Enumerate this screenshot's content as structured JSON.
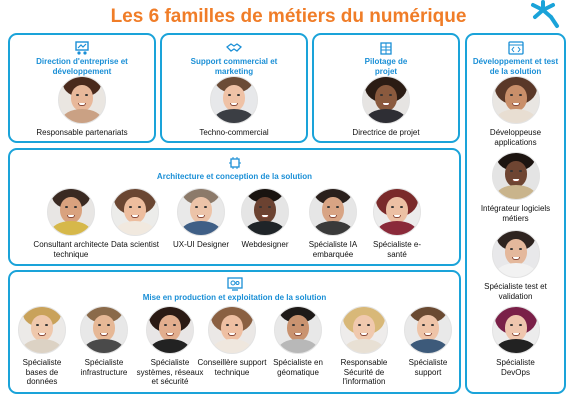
{
  "title": "Les 6 familles de métiers du numérique",
  "colors": {
    "title": "#f07d28",
    "border": "#1aa3d9",
    "heading": "#1a8fd6"
  },
  "families": [
    {
      "id": "direction",
      "icon": "people-chart-icon",
      "heading": "Direction d'entreprise et développement",
      "jobs": [
        "Responsable partenariats"
      ]
    },
    {
      "id": "support",
      "icon": "handshake-icon",
      "heading": "Support commercial et marketing",
      "jobs": [
        "Techno-commercial"
      ]
    },
    {
      "id": "pilotage",
      "icon": "building-icon",
      "heading": "Pilotage de projet",
      "jobs": [
        "Directrice de projet"
      ]
    },
    {
      "id": "dev",
      "icon": "code-window-icon",
      "heading": "Développement et test de la solution",
      "jobs": [
        "Développeuse applications",
        "Intégrateur logiciels métiers",
        "Spécialiste test et validation",
        "Spécialiste DevOps"
      ]
    },
    {
      "id": "archi",
      "icon": "circuit-icon",
      "heading": "Architecture et conception de la solution",
      "jobs": [
        "Consultant architecte technique",
        "Data scientist",
        "UX-UI Designer",
        "Webdesigner",
        "Spécialiste IA embarquée",
        "Spécialiste e-santé"
      ]
    },
    {
      "id": "prod",
      "icon": "gears-screen-icon",
      "heading": "Mise en production et exploitation de la solution",
      "jobs": [
        "Spécialiste bases de données",
        "Spécialiste infrastructure",
        "Spécialiste systèmes, réseaux et sécurité",
        "Conseillère support technique",
        "Spécialiste en géomatique",
        "Responsable Sécurité de l'information",
        "Spécialiste support"
      ]
    }
  ]
}
